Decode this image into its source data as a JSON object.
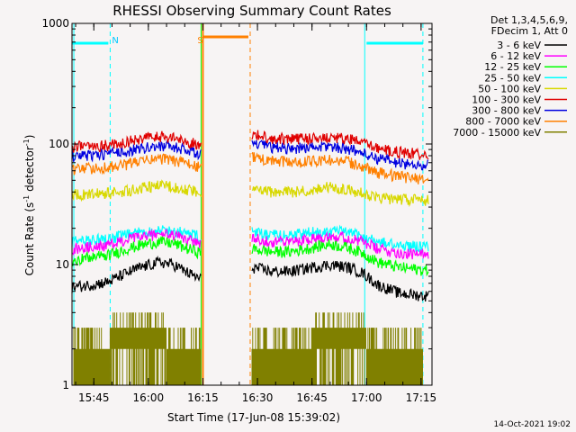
{
  "chart_data": {
    "type": "line",
    "title": "RHESSI Observing Summary Count Rates",
    "xlabel": "Start Time (17-Jun-08 15:39:02)",
    "ylabel": "Count Rate (s⁻¹ detector⁻¹)",
    "ylabel_parts": [
      "Count Rate (s",
      "-1",
      " detector",
      "-1",
      ")"
    ],
    "yscale": "log",
    "ylim": [
      1,
      1000
    ],
    "xlim_minutes": [
      0,
      99
    ],
    "xticks": [
      {
        "label": "15:45",
        "minute": 6
      },
      {
        "label": "16:00",
        "minute": 21
      },
      {
        "label": "16:15",
        "minute": 36
      },
      {
        "label": "16:30",
        "minute": 51
      },
      {
        "label": "16:45",
        "minute": 66
      },
      {
        "label": "17:00",
        "minute": 81
      },
      {
        "label": "17:15",
        "minute": 96
      }
    ],
    "yticks": [
      {
        "label": "1",
        "value": 1
      },
      {
        "label": "10",
        "value": 10
      },
      {
        "label": "100",
        "value": 100
      },
      {
        "label": "1000",
        "value": 1000
      }
    ],
    "legend_header": [
      "Det 1,3,4,5,6,9,",
      "FDecim 1, Att 0"
    ],
    "series": [
      {
        "name": "3 - 6 keV",
        "color": "#000000",
        "points": [
          [
            0,
            6.5
          ],
          [
            5,
            6.8
          ],
          [
            10,
            7.2
          ],
          [
            15,
            8.5
          ],
          [
            19,
            9.5
          ],
          [
            24,
            10.5
          ],
          [
            28,
            10
          ],
          [
            32,
            8.5
          ],
          [
            35.5,
            7.5
          ],
          [
            49.5,
            9.5
          ],
          [
            55,
            8.8
          ],
          [
            60,
            8.8
          ],
          [
            66,
            9.5
          ],
          [
            71,
            10
          ],
          [
            76,
            9.5
          ],
          [
            80,
            8.5
          ],
          [
            84,
            6.8
          ],
          [
            90,
            5.8
          ],
          [
            97,
            5.5
          ]
        ]
      },
      {
        "name": "6 - 12 keV",
        "color": "#ff00ff",
        "points": [
          [
            0,
            13.5
          ],
          [
            5,
            14
          ],
          [
            10,
            14.5
          ],
          [
            15,
            16
          ],
          [
            19,
            17
          ],
          [
            24,
            18
          ],
          [
            28,
            17.5
          ],
          [
            32,
            16
          ],
          [
            35.5,
            15
          ],
          [
            49.5,
            16.5
          ],
          [
            55,
            15.5
          ],
          [
            60,
            15.5
          ],
          [
            66,
            16.5
          ],
          [
            71,
            17.5
          ],
          [
            76,
            16.5
          ],
          [
            80,
            15.5
          ],
          [
            84,
            13.5
          ],
          [
            90,
            12.5
          ],
          [
            97,
            12
          ]
        ]
      },
      {
        "name": "12 - 25 keV",
        "color": "#00ff00",
        "points": [
          [
            0,
            11
          ],
          [
            5,
            11.5
          ],
          [
            10,
            12
          ],
          [
            15,
            13.5
          ],
          [
            19,
            14.5
          ],
          [
            24,
            15.5
          ],
          [
            28,
            15
          ],
          [
            32,
            13.5
          ],
          [
            35.5,
            12.5
          ],
          [
            49.5,
            13.5
          ],
          [
            55,
            12.8
          ],
          [
            60,
            12.8
          ],
          [
            66,
            13.8
          ],
          [
            71,
            14.8
          ],
          [
            76,
            13.8
          ],
          [
            80,
            12.5
          ],
          [
            84,
            10.5
          ],
          [
            90,
            9.5
          ],
          [
            97,
            9
          ]
        ]
      },
      {
        "name": "25 - 50 keV",
        "color": "#00ffff",
        "points": [
          [
            0,
            15.5
          ],
          [
            5,
            16
          ],
          [
            10,
            16.5
          ],
          [
            15,
            17.5
          ],
          [
            19,
            18.5
          ],
          [
            24,
            19.5
          ],
          [
            28,
            19
          ],
          [
            32,
            18
          ],
          [
            35.5,
            17
          ],
          [
            49.5,
            18.5
          ],
          [
            55,
            17.5
          ],
          [
            60,
            17.5
          ],
          [
            66,
            18.5
          ],
          [
            71,
            19
          ],
          [
            76,
            18.5
          ],
          [
            80,
            17
          ],
          [
            84,
            15.5
          ],
          [
            90,
            14.5
          ],
          [
            97,
            14
          ]
        ]
      },
      {
        "name": "50 - 100 keV",
        "color": "#d8d800",
        "points": [
          [
            0,
            38
          ],
          [
            5,
            38.5
          ],
          [
            10,
            39
          ],
          [
            15,
            41
          ],
          [
            19,
            43
          ],
          [
            24,
            45
          ],
          [
            28,
            44
          ],
          [
            32,
            42
          ],
          [
            35.5,
            40
          ],
          [
            49.5,
            42
          ],
          [
            55,
            40
          ],
          [
            60,
            40
          ],
          [
            66,
            42
          ],
          [
            71,
            44
          ],
          [
            76,
            42
          ],
          [
            80,
            39
          ],
          [
            84,
            36
          ],
          [
            90,
            35
          ],
          [
            97,
            34
          ]
        ]
      },
      {
        "name": "100 - 300 keV",
        "color": "#e00000",
        "points": [
          [
            0,
            95
          ],
          [
            5,
            96
          ],
          [
            10,
            98
          ],
          [
            15,
            104
          ],
          [
            19,
            110
          ],
          [
            24,
            116
          ],
          [
            28,
            112
          ],
          [
            32,
            104
          ],
          [
            35.5,
            98
          ],
          [
            49.5,
            120
          ],
          [
            55,
            112
          ],
          [
            60,
            110
          ],
          [
            66,
            112
          ],
          [
            71,
            114
          ],
          [
            76,
            110
          ],
          [
            80,
            102
          ],
          [
            84,
            92
          ],
          [
            90,
            86
          ],
          [
            97,
            82
          ]
        ]
      },
      {
        "name": "300 - 800 keV",
        "color": "#0000e0",
        "points": [
          [
            0,
            80
          ],
          [
            5,
            81
          ],
          [
            10,
            83
          ],
          [
            15,
            87
          ],
          [
            19,
            92
          ],
          [
            24,
            97
          ],
          [
            28,
            94
          ],
          [
            32,
            88
          ],
          [
            35.5,
            83
          ],
          [
            49.5,
            100
          ],
          [
            55,
            94
          ],
          [
            60,
            92
          ],
          [
            66,
            94
          ],
          [
            71,
            96
          ],
          [
            76,
            92
          ],
          [
            80,
            84
          ],
          [
            84,
            76
          ],
          [
            90,
            70
          ],
          [
            97,
            66
          ]
        ]
      },
      {
        "name": "800 - 7000 keV",
        "color": "#ff8000",
        "points": [
          [
            0,
            62
          ],
          [
            5,
            63
          ],
          [
            10,
            64
          ],
          [
            15,
            68
          ],
          [
            19,
            72
          ],
          [
            24,
            76
          ],
          [
            28,
            73
          ],
          [
            32,
            68
          ],
          [
            35.5,
            64
          ],
          [
            49.5,
            78
          ],
          [
            55,
            72
          ],
          [
            60,
            71
          ],
          [
            66,
            72
          ],
          [
            71,
            74
          ],
          [
            76,
            71
          ],
          [
            80,
            65
          ],
          [
            84,
            58
          ],
          [
            90,
            54
          ],
          [
            97,
            51
          ]
        ]
      },
      {
        "name": "7000 - 15000 keV",
        "color": "#808000",
        "points": []
      }
    ],
    "annotations": [
      {
        "text": "N",
        "minute": 10.5,
        "color": "#00c8ff"
      },
      {
        "text": "S",
        "minute": 34,
        "color": "#ff8000"
      }
    ],
    "footer_date": "14-Oct-2021 19:02"
  }
}
